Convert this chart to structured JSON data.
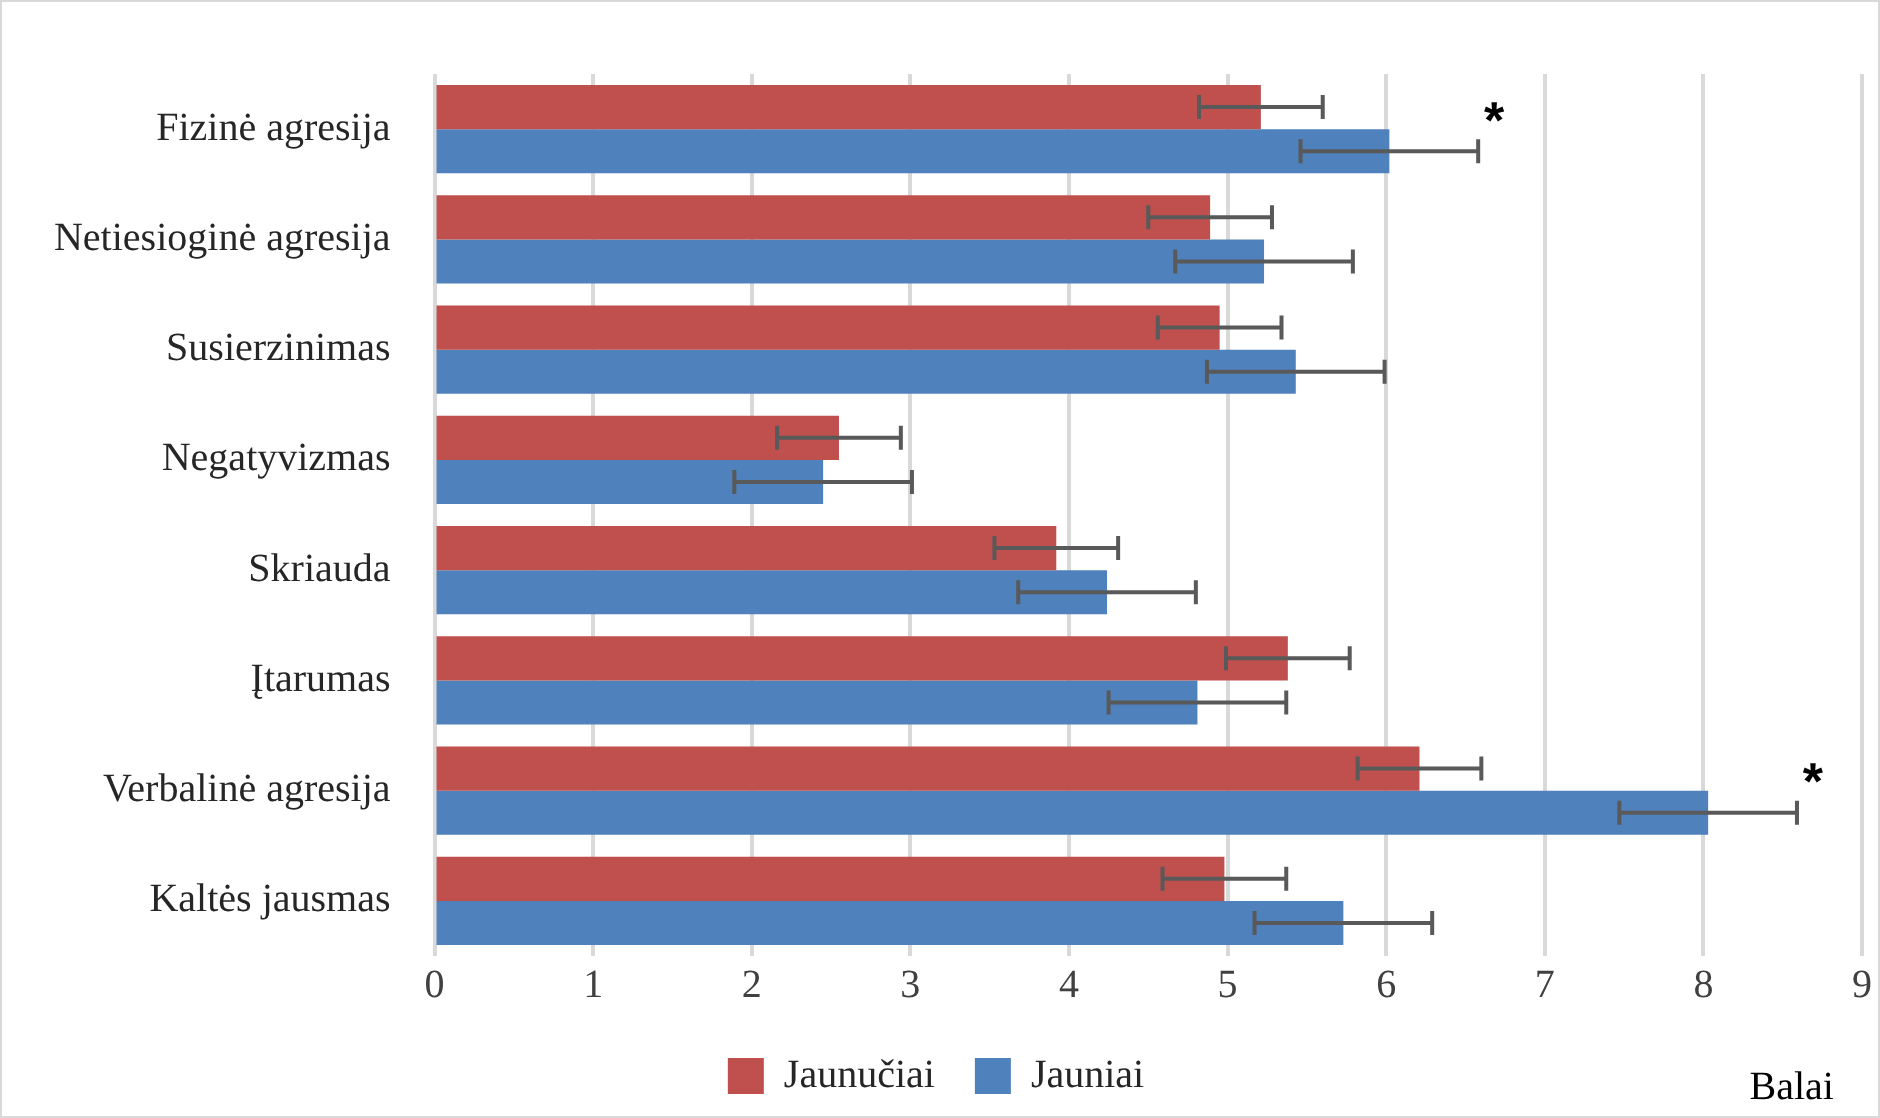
{
  "chart_data": {
    "type": "bar",
    "orientation": "horizontal",
    "xlabel": "Balai",
    "categories": [
      "Fizinė agresija",
      "Netiesioginė agresija",
      "Susierzinimas",
      "Negatyvizmas",
      "Skriauda",
      "Įtarumas",
      "Verbalinė agresija",
      "Kaltės jausmas"
    ],
    "series": [
      {
        "name": "Jaunučiai",
        "color": "#c0504d",
        "values": [
          5.21,
          4.89,
          4.95,
          2.55,
          3.92,
          5.38,
          6.21,
          4.98
        ],
        "errors": [
          0.39,
          0.39,
          0.39,
          0.39,
          0.39,
          0.39,
          0.39,
          0.39
        ]
      },
      {
        "name": "Jauniai",
        "color": "#4f81bd",
        "values": [
          6.02,
          5.23,
          5.43,
          2.45,
          4.24,
          4.81,
          8.03,
          5.73
        ],
        "errors": [
          0.56,
          0.56,
          0.56,
          0.56,
          0.56,
          0.56,
          0.56,
          0.56
        ],
        "value_labels": [
          "*",
          null,
          null,
          null,
          null,
          null,
          "*",
          null
        ]
      }
    ],
    "xlim": [
      0,
      9
    ],
    "xticks": [
      0,
      1,
      2,
      3,
      4,
      5,
      6,
      7,
      8,
      9
    ],
    "grid": "x",
    "legend": "bottom"
  }
}
